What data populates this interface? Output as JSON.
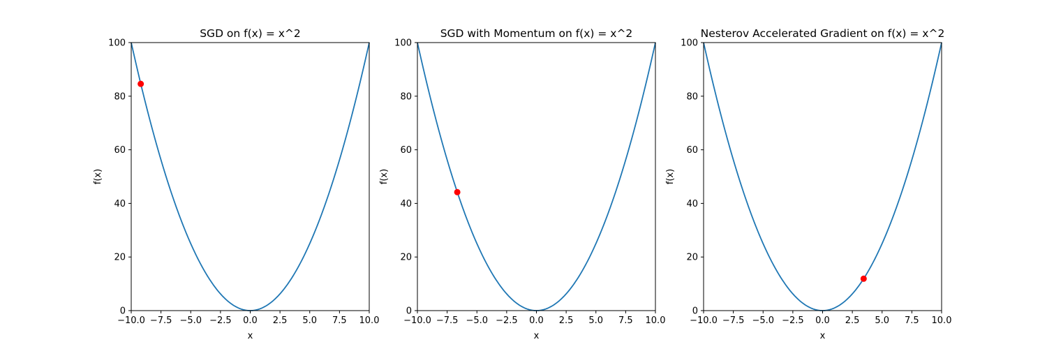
{
  "figure": {
    "background": "#ffffff"
  },
  "chart_data": [
    {
      "type": "line",
      "title": "SGD on f(x) = x^2",
      "xlabel": "x",
      "ylabel": "f(x)",
      "xlim": [
        -10,
        10
      ],
      "ylim": [
        0,
        100
      ],
      "xticks": [
        "−10.0",
        "−7.5",
        "−5.0",
        "−2.5",
        "0.0",
        "2.5",
        "5.0",
        "7.5",
        "10.0"
      ],
      "yticks": [
        "0",
        "20",
        "40",
        "60",
        "80",
        "100"
      ],
      "series": [
        {
          "function": "x^2",
          "x_range": [
            -10,
            10
          ],
          "color": "#1f77b4"
        }
      ],
      "marker": {
        "x": -9.2,
        "y": 84.6,
        "color": "#ff0000"
      }
    },
    {
      "type": "line",
      "title": "SGD with Momentum on f(x) = x^2",
      "xlabel": "x",
      "ylabel": "f(x)",
      "xlim": [
        -10,
        10
      ],
      "ylim": [
        0,
        100
      ],
      "xticks": [
        "−10.0",
        "−7.5",
        "−5.0",
        "−2.5",
        "0.0",
        "2.5",
        "5.0",
        "7.5",
        "10.0"
      ],
      "yticks": [
        "0",
        "20",
        "40",
        "60",
        "80",
        "100"
      ],
      "series": [
        {
          "function": "x^2",
          "x_range": [
            -10,
            10
          ],
          "color": "#1f77b4"
        }
      ],
      "marker": {
        "x": -6.65,
        "y": 44.2,
        "color": "#ff0000"
      }
    },
    {
      "type": "line",
      "title": "Nesterov Accelerated Gradient on f(x) = x^2",
      "xlabel": "x",
      "ylabel": "f(x)",
      "xlim": [
        -10,
        10
      ],
      "ylim": [
        0,
        100
      ],
      "xticks": [
        "−10.0",
        "−7.5",
        "−5.0",
        "−2.5",
        "0.0",
        "2.5",
        "5.0",
        "7.5",
        "10.0"
      ],
      "yticks": [
        "0",
        "20",
        "40",
        "60",
        "80",
        "100"
      ],
      "series": [
        {
          "function": "x^2",
          "x_range": [
            -10,
            10
          ],
          "color": "#1f77b4"
        }
      ],
      "marker": {
        "x": 3.45,
        "y": 11.9,
        "color": "#ff0000"
      }
    }
  ]
}
